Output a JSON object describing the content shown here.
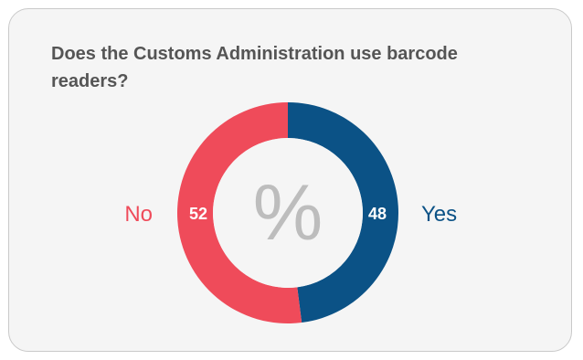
{
  "chart_data": {
    "type": "pie",
    "title": "Does the Customs Administration use barcode readers?",
    "center_label": "%",
    "slices": [
      {
        "label": "Yes",
        "value": 48,
        "color": "#0b5286"
      },
      {
        "label": "No",
        "value": 52,
        "color": "#ef4b5a"
      }
    ]
  }
}
